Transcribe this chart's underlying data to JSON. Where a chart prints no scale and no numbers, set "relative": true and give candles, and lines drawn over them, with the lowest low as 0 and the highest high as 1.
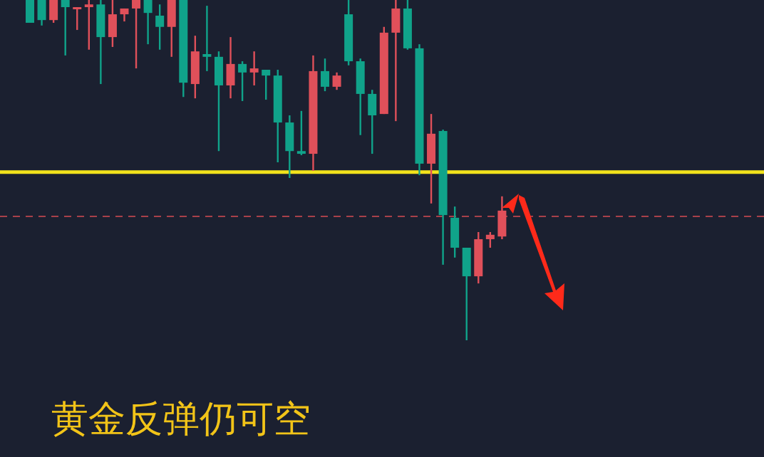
{
  "chart_data": {
    "type": "candlestick",
    "title": "黄金反弹仍可空",
    "relative": true,
    "categories": [
      null,
      null,
      null,
      null,
      null,
      null,
      null,
      null,
      null,
      null,
      null,
      null,
      null,
      null,
      null,
      null,
      null,
      null,
      null,
      null,
      null,
      null,
      null,
      null,
      null,
      null,
      null,
      null,
      null,
      null,
      null,
      null,
      null,
      null,
      null,
      null,
      null,
      null,
      null,
      null,
      null
    ],
    "ohlc": [
      [
        1,
        1,
        0.933,
        0.933
      ],
      [
        1,
        1,
        0.925,
        0.941
      ],
      [
        0.941,
        1,
        0.933,
        1
      ],
      [
        1,
        1,
        0.837,
        0.979
      ],
      [
        0.975,
        0.979,
        0.912,
        0.979
      ],
      [
        0.979,
        1,
        0.854,
        0.987
      ],
      [
        0.987,
        1,
        0.753,
        0.891
      ],
      [
        0.891,
        1,
        0.862,
        0.958
      ],
      [
        0.958,
        0.975,
        0.937,
        0.975
      ],
      [
        0.975,
        1,
        0.799,
        1
      ],
      [
        1,
        1,
        0.87,
        0.962
      ],
      [
        0.954,
        0.987,
        0.854,
        0.921
      ],
      [
        0.921,
        1,
        0.833,
        1
      ],
      [
        1,
        1,
        0.715,
        0.757
      ],
      [
        0.753,
        0.895,
        0.711,
        0.849
      ],
      [
        0.841,
        0.983,
        0.791,
        0.833
      ],
      [
        0.833,
        0.849,
        0.556,
        0.749
      ],
      [
        0.749,
        0.891,
        0.711,
        0.812
      ],
      [
        0.812,
        0.82,
        0.703,
        0.787
      ],
      [
        0.787,
        0.849,
        0.749,
        0.799
      ],
      [
        0.795,
        0.795,
        0.707,
        0.778
      ],
      [
        0.778,
        0.795,
        0.523,
        0.64
      ],
      [
        0.64,
        0.661,
        0.477,
        0.556
      ],
      [
        0.556,
        0.674,
        0.544,
        0.548
      ],
      [
        0.548,
        0.837,
        0.498,
        0.791
      ],
      [
        0.791,
        0.828,
        0.732,
        0.745
      ],
      [
        0.745,
        0.787,
        0.736,
        0.778
      ],
      [
        0.958,
        1,
        0.808,
        0.82
      ],
      [
        0.82,
        0.828,
        0.603,
        0.724
      ],
      [
        0.724,
        0.736,
        0.548,
        0.661
      ],
      [
        0.665,
        0.921,
        0.665,
        0.904
      ],
      [
        0.904,
        1,
        0.644,
        0.975
      ],
      [
        0.975,
        1,
        0.854,
        0.858
      ],
      [
        0.858,
        0.87,
        0.485,
        0.519
      ],
      [
        0.519,
        0.665,
        0.402,
        0.607
      ],
      [
        0.615,
        0.619,
        0.222,
        0.368
      ],
      [
        0.36,
        0.393,
        0.243,
        0.272
      ],
      [
        0.272,
        0.272,
        0,
        0.188
      ],
      [
        0.188,
        0.318,
        0.167,
        0.297
      ],
      [
        0.297,
        0.318,
        0.272,
        0.31
      ],
      [
        0.305,
        0.423,
        0.297,
        0.381
      ]
    ],
    "colors": [
      "#10a38a",
      "#10a38a",
      "#e0505a",
      "#10a38a",
      "#e0505a",
      "#e0505a",
      "#10a38a",
      "#e0505a",
      "#e0505a",
      "#e0505a",
      "#10a38a",
      "#10a38a",
      "#e0505a",
      "#10a38a",
      "#e0505a",
      "#10a38a",
      "#10a38a",
      "#e0505a",
      "#10a38a",
      "#e0505a",
      "#10a38a",
      "#10a38a",
      "#10a38a",
      "#10a38a",
      "#e0505a",
      "#10a38a",
      "#e0505a",
      "#10a38a",
      "#10a38a",
      "#10a38a",
      "#e0505a",
      "#e0505a",
      "#10a38a",
      "#10a38a",
      "#e0505a",
      "#10a38a",
      "#10a38a",
      "#10a38a",
      "#e0505a",
      "#e0505a",
      "#e0505a"
    ],
    "ref_lines": [
      {
        "axis": "y",
        "value": 0.494,
        "label": null,
        "color": "#f2e21c",
        "line_style": "solid"
      },
      {
        "axis": "y",
        "value": 0.364,
        "label": null,
        "color": "#a8404a",
        "line_style": "dashed"
      }
    ]
  }
}
